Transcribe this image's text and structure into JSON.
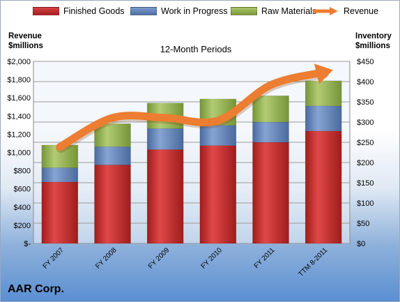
{
  "legend": {
    "finished_goods": "Finished Goods",
    "wip": "Work in Progress",
    "raw": "Raw Materials",
    "revenue": "Revenue"
  },
  "left_axis_title": [
    "Revenue",
    "$millions"
  ],
  "right_axis_title": [
    "Inventory",
    "$millions"
  ],
  "subtitle": "12-Month Periods",
  "company": "AAR Corp.",
  "colors": {
    "finished_goods": "#c42b2b",
    "wip": "#5d7fb4",
    "raw": "#8caa4a",
    "revenue": "#ed7d31"
  },
  "chart_data": {
    "type": "bar",
    "stacked": true,
    "categories": [
      "FY 2007",
      "FY 2008",
      "FY 2009",
      "FY 2010",
      "FY 2011",
      "TTM 8-2011"
    ],
    "series": [
      {
        "name": "Finished Goods",
        "axis": "right",
        "values": [
          152,
          194,
          232,
          242,
          250,
          278
        ]
      },
      {
        "name": "Work in Progress",
        "axis": "right",
        "values": [
          35,
          45,
          52,
          50,
          50,
          62
        ]
      },
      {
        "name": "Raw Materials",
        "axis": "right",
        "values": [
          56,
          57,
          63,
          65,
          65,
          62
        ]
      },
      {
        "name": "Revenue",
        "type": "line",
        "axis": "left",
        "values": [
          1060,
          1380,
          1380,
          1350,
          1740,
          1880
        ]
      }
    ],
    "left_axis": {
      "min": 0,
      "max": 2000,
      "step": 200,
      "tick_labels": [
        "$-",
        "$200",
        "$400",
        "$600",
        "$800",
        "$1,000",
        "$1,200",
        "$1,400",
        "$1,600",
        "$1,800",
        "$2,000"
      ]
    },
    "right_axis": {
      "min": 0,
      "max": 450,
      "step": 50,
      "tick_labels": [
        "$0",
        "$50",
        "$100",
        "$150",
        "$200",
        "$250",
        "$300",
        "$350",
        "$400",
        "$450"
      ]
    },
    "grid": true,
    "legend_position": "top"
  }
}
